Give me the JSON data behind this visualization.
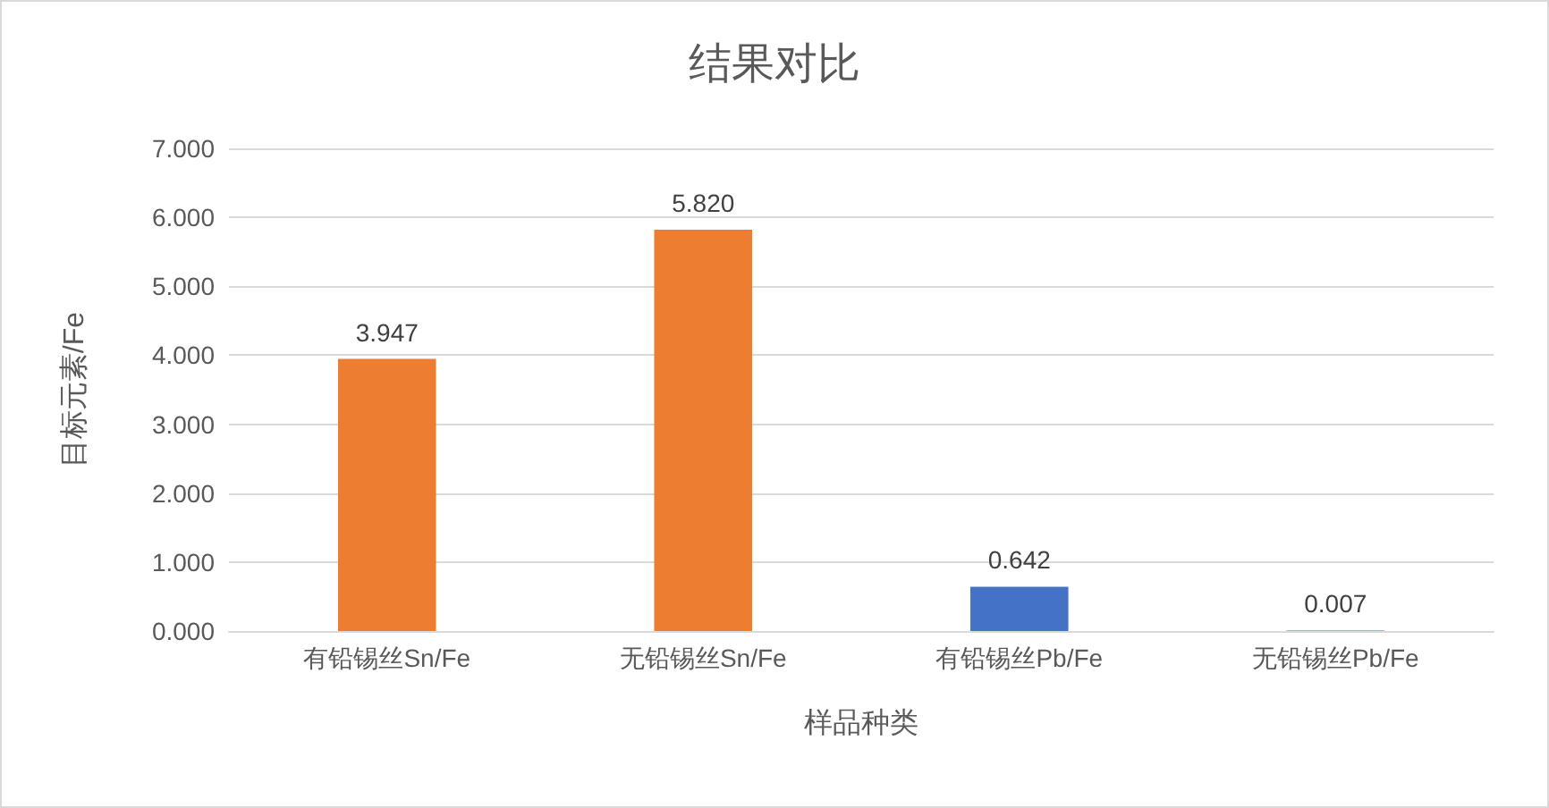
{
  "chart_data": {
    "type": "bar",
    "title": "结果对比",
    "xlabel": "样品种类",
    "ylabel": "目标元素/Fe",
    "categories": [
      "有铅锡丝Sn/Fe",
      "无铅锡丝Sn/Fe",
      "有铅锡丝Pb/Fe",
      "无铅锡丝Pb/Fe"
    ],
    "values": [
      3.947,
      5.82,
      0.642,
      0.007
    ],
    "colors": [
      "#ed7d31",
      "#ed7d31",
      "#4472c4",
      "#4472c4"
    ],
    "value_labels": [
      "3.947",
      "5.820",
      "0.642",
      "0.007"
    ],
    "ylim": [
      0,
      7
    ],
    "yticks": [
      {
        "value": 0,
        "label": "0.000"
      },
      {
        "value": 1,
        "label": "1.000"
      },
      {
        "value": 2,
        "label": "2.000"
      },
      {
        "value": 3,
        "label": "3.000"
      },
      {
        "value": 4,
        "label": "4.000"
      },
      {
        "value": 5,
        "label": "5.000"
      },
      {
        "value": 6,
        "label": "6.000"
      },
      {
        "value": 7,
        "label": "7.000"
      }
    ],
    "grid": "y"
  }
}
